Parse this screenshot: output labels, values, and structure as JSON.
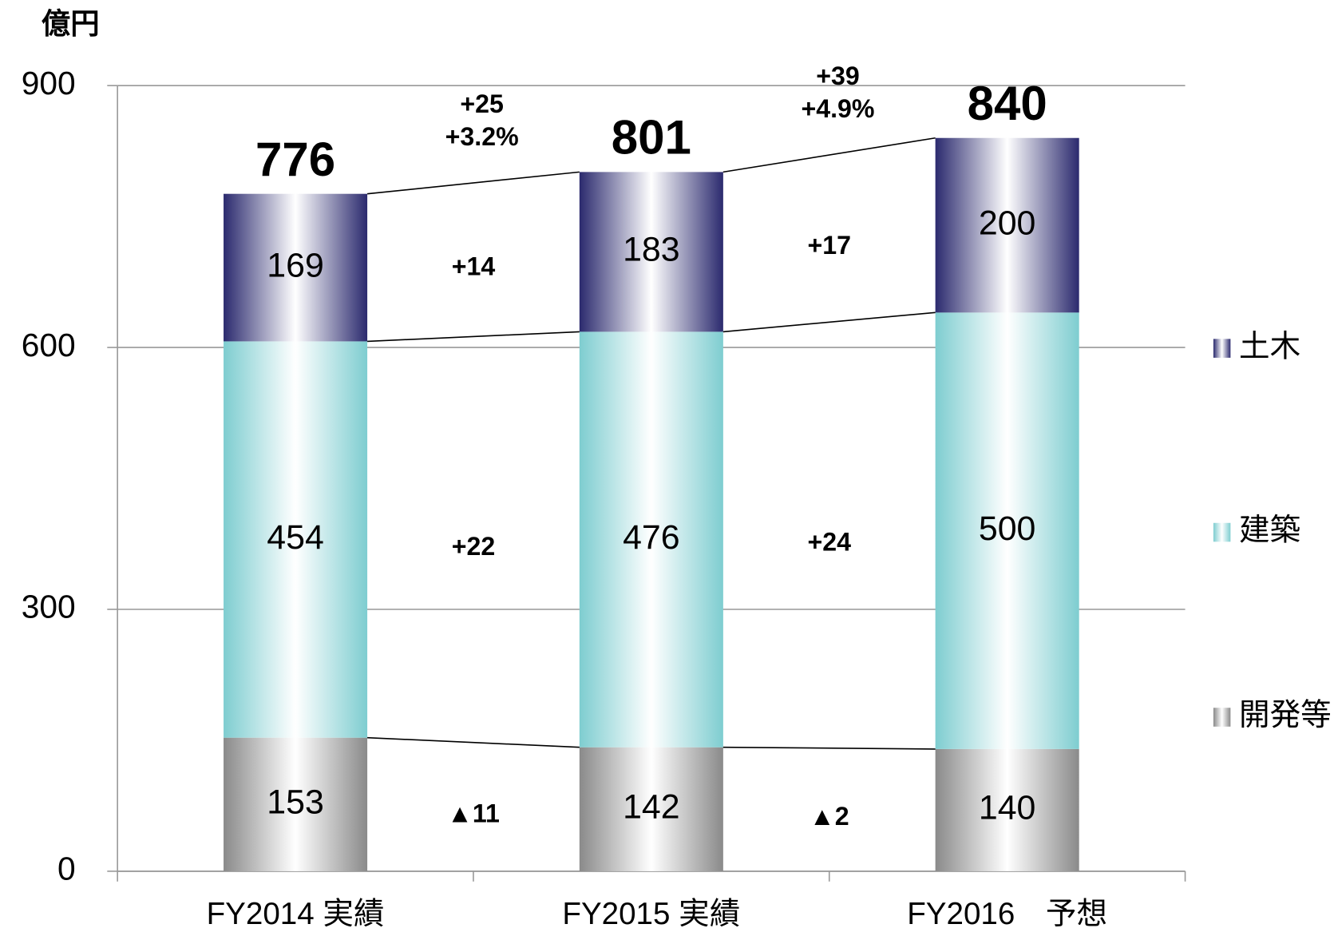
{
  "chart_data": {
    "type": "bar",
    "stacked": true,
    "y_unit": "億円",
    "categories": [
      "FY2014 実績",
      "FY2015 実績",
      "FY2016　予想"
    ],
    "series": [
      {
        "name": "開発等",
        "color": "#8a8a8a",
        "values": [
          153,
          142,
          140
        ]
      },
      {
        "name": "建築",
        "color": "#7ecdd0",
        "values": [
          454,
          476,
          500
        ]
      },
      {
        "name": "土木",
        "color": "#2b2a6e",
        "values": [
          169,
          183,
          200
        ]
      }
    ],
    "totals": [
      776,
      801,
      840
    ],
    "changes": [
      {
        "total": "+25",
        "total_pct": "+3.2%",
        "segments": [
          "▲11",
          "+22",
          "+14"
        ]
      },
      {
        "total": "+39",
        "total_pct": "+4.9%",
        "segments": [
          "▲2",
          "+24",
          "+17"
        ]
      }
    ],
    "ylim": [
      0,
      900
    ],
    "yticks": [
      0,
      300,
      600,
      900
    ],
    "grid": true,
    "legend": "right"
  }
}
